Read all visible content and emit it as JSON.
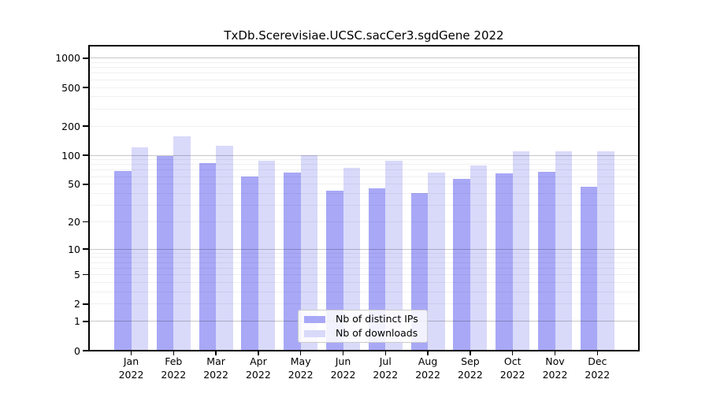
{
  "chart_data": {
    "type": "bar",
    "title": "TxDb.Scerevisiae.UCSC.sacCer3.sgdGene 2022",
    "year": "2022",
    "months": [
      "Jan",
      "Feb",
      "Mar",
      "Apr",
      "May",
      "Jun",
      "Jul",
      "Aug",
      "Sep",
      "Oct",
      "Nov",
      "Dec"
    ],
    "series": [
      {
        "name": "Nb of distinct IPs",
        "color": "#a8a8f7",
        "values": [
          69,
          98,
          83,
          60,
          66,
          43,
          45,
          40,
          57,
          65,
          68,
          47
        ]
      },
      {
        "name": "Nb of downloads",
        "color": "#d9d9fa",
        "values": [
          120,
          158,
          125,
          87,
          101,
          74,
          87,
          66,
          79,
          111,
          110,
          109
        ]
      }
    ],
    "yscale": "log1p",
    "ylim": [
      0,
      1000
    ],
    "y_ticks": [
      1000,
      500,
      200,
      100,
      50,
      20,
      10,
      5,
      2,
      1,
      0
    ],
    "grid": true,
    "legend_position": "lower center"
  },
  "colors": {
    "bar_distinct_ips": "#a8a8f7",
    "bar_downloads": "#d9d9fa",
    "grid_major": "rgba(0,0,0,0.22)",
    "grid_minor": "rgba(0,0,0,0.06)",
    "spine": "#000000",
    "background": "#ffffff"
  }
}
